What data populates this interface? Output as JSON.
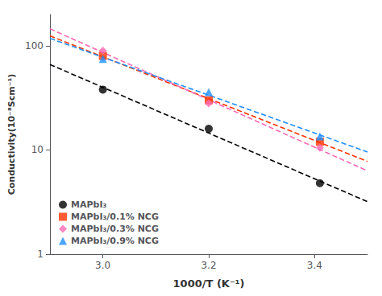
{
  "chart_data": {
    "type": "scatter",
    "xlabel": "1000/T (K⁻¹)",
    "ylabel": "Conductivity(10⁻⁸Scm⁻¹)",
    "log": "y",
    "grid": false,
    "legend": "lower left",
    "xlim": [
      2.9,
      3.5
    ],
    "xticks": [
      {
        "value": 3.0,
        "label": "3.0"
      },
      3.2,
      3.4
    ],
    "ylim": [
      1,
      200
    ],
    "yticks": [
      1,
      10,
      100
    ],
    "series": [
      {
        "name": "MAPbI₃",
        "color": "#000000",
        "marker": "circle",
        "x": [
          3.0,
          3.2,
          3.41
        ],
        "values": [
          38,
          16,
          4.8
        ],
        "fit": {
          "line_style": "dashed",
          "color": "#000000",
          "x": [
            2.9,
            3.5
          ],
          "values": [
            66.16,
            3.193
          ]
        }
      },
      {
        "name": "MAPbI₃/0.1% NCG",
        "color": "#ff3300",
        "marker": "square",
        "x": [
          3.0,
          3.2,
          3.41
        ],
        "values": [
          80,
          30,
          12.0
        ],
        "fit": {
          "line_style": "dashed",
          "color": "#ff3300",
          "x": [
            2.9,
            3.5
          ],
          "values": [
            124.66,
            7.773
          ]
        }
      },
      {
        "name": "MAPbI₃/0.3% NCG",
        "color": "#ff69b4",
        "marker": "diamond",
        "x": [
          3.0,
          3.2,
          3.41
        ],
        "values": [
          90,
          28,
          10.5
        ],
        "fit": {
          "line_style": "dashed",
          "color": "#ff69b4",
          "x": [
            2.9,
            3.5
          ],
          "values": [
            145.84,
            6.305
          ]
        }
      },
      {
        "name": "MAPbI₃/0.9% NCG",
        "color": "#1e90ff",
        "marker": "triangle",
        "x": [
          3.0,
          3.2,
          3.41
        ],
        "values": [
          75,
          36,
          13.5
        ],
        "fit": {
          "line_style": "dashed",
          "color": "#1e90ff",
          "x": [
            2.9,
            3.5
          ],
          "values": [
            118.06,
            9.576
          ]
        }
      }
    ]
  }
}
